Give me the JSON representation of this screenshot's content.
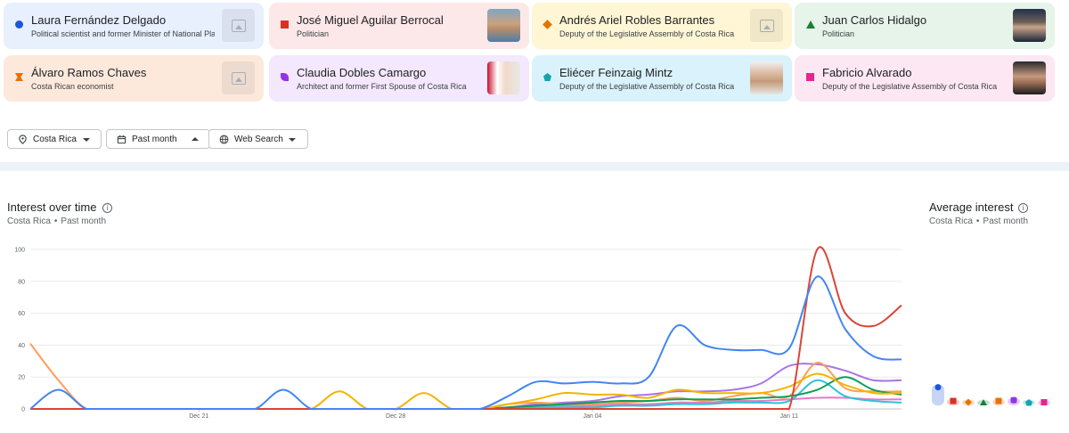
{
  "terms": [
    {
      "name": "Laura Fernández Delgado",
      "desc": "Political scientist and former Minister of National Planning",
      "color": "#1a56db",
      "marker": "circle",
      "bg": "#e8effd",
      "thumb": "placeholder"
    },
    {
      "name": "José Miguel Aguilar Berrocal",
      "desc": "Politician",
      "color": "#d93025",
      "marker": "square",
      "bg": "#fce8e8",
      "thumb": "photo"
    },
    {
      "name": "Andrés Ariel Robles Barrantes",
      "desc": "Deputy of the Legislative Assembly of Costa Rica",
      "color": "#e37400",
      "marker": "diamond",
      "bg": "#fef6d5",
      "thumb": "placeholder"
    },
    {
      "name": "Juan Carlos Hidalgo",
      "desc": "Politician",
      "color": "#188038",
      "marker": "triangle",
      "bg": "#e6f4ea",
      "thumb": "photo"
    },
    {
      "name": "Álvaro Ramos Chaves",
      "desc": "Costa Rican economist",
      "color": "#e8710a",
      "marker": "bowtie",
      "bg": "#fde9dc",
      "thumb": "placeholder"
    },
    {
      "name": "Claudia Dobles Camargo",
      "desc": "Architect and former First Spouse of Costa Rica",
      "color": "#9334e6",
      "marker": "leaf",
      "bg": "#f3e8fd",
      "thumb": "photo"
    },
    {
      "name": "Eliécer Feinzaig Mintz",
      "desc": "Deputy of the Legislative Assembly of Costa Rica",
      "color": "#12a4af",
      "marker": "pentagon",
      "bg": "#d9f2fb",
      "thumb": "photo"
    },
    {
      "name": "Fabricio Alvarado",
      "desc": "Deputy of the Legislative Assembly of Costa Rica",
      "color": "#e52592",
      "marker": "square",
      "bg": "#fde7f3",
      "thumb": "photo"
    }
  ],
  "filters": {
    "region": "Costa Rica",
    "time": "Past month",
    "property": "Web Search"
  },
  "interest": {
    "title": "Interest over time",
    "region": "Costa Rica",
    "period": "Past month",
    "info": "i"
  },
  "average": {
    "title": "Average interest",
    "region": "Costa Rica",
    "period": "Past month",
    "info": "i"
  },
  "icons": {
    "region": "location-pin-icon",
    "time": "calendar-icon",
    "property": "globe-icon",
    "info": "info-icon"
  },
  "chart_data": {
    "type": "line",
    "ylim": [
      0,
      100
    ],
    "yticks": [
      0,
      20,
      40,
      60,
      80,
      100
    ],
    "x": [
      "Dec 15",
      "Dec 16",
      "Dec 17",
      "Dec 18",
      "Dec 19",
      "Dec 20",
      "Dec 21",
      "Dec 22",
      "Dec 23",
      "Dec 24",
      "Dec 25",
      "Dec 26",
      "Dec 27",
      "Dec 28",
      "Dec 29",
      "Dec 30",
      "Dec 31",
      "Jan 01",
      "Jan 02",
      "Jan 03",
      "Jan 04",
      "Jan 05",
      "Jan 06",
      "Jan 07",
      "Jan 08",
      "Jan 09",
      "Jan 10",
      "Jan 11",
      "Jan 12",
      "Jan 13",
      "Jan 14",
      "Jan 15"
    ],
    "xticks": [
      "Dec 21",
      "Dec 28",
      "Jan 04",
      "Jan 11"
    ],
    "grid": true,
    "series": [
      {
        "color": "#4285f4",
        "values": [
          0,
          12,
          0,
          0,
          0,
          0,
          0,
          0,
          0,
          12,
          0,
          0,
          0,
          0,
          0,
          0,
          0,
          8,
          17,
          16,
          17,
          16,
          20,
          52,
          40,
          37,
          37,
          38,
          83,
          50,
          33,
          31
        ]
      },
      {
        "color": "#db4437",
        "values": [
          0,
          0,
          0,
          0,
          0,
          0,
          0,
          0,
          0,
          0,
          0,
          0,
          0,
          0,
          0,
          0,
          0,
          0,
          0,
          0,
          0,
          0,
          0,
          0,
          0,
          0,
          0,
          0,
          100,
          60,
          52,
          65
        ]
      },
      {
        "color": "#f4b400",
        "values": [
          0,
          0,
          0,
          0,
          0,
          0,
          0,
          0,
          0,
          0,
          0,
          11,
          0,
          0,
          10,
          0,
          0,
          3,
          6,
          10,
          9,
          9,
          7,
          12,
          10,
          10,
          10,
          14,
          22,
          15,
          10,
          10
        ]
      },
      {
        "color": "#0f9d58",
        "values": [
          0,
          0,
          0,
          0,
          0,
          0,
          0,
          0,
          0,
          0,
          0,
          0,
          0,
          0,
          0,
          0,
          0,
          1,
          2,
          3,
          4,
          5,
          5,
          6,
          6,
          6,
          7,
          8,
          12,
          20,
          12,
          9
        ]
      },
      {
        "color": "#ff9e58",
        "values": [
          41,
          18,
          0,
          0,
          0,
          0,
          0,
          0,
          0,
          0,
          0,
          0,
          0,
          0,
          0,
          0,
          0,
          3,
          4,
          3,
          3,
          4,
          5,
          7,
          5,
          8,
          10,
          8,
          29,
          13,
          11,
          11
        ]
      },
      {
        "color": "#a875e5",
        "values": [
          0,
          0,
          0,
          0,
          0,
          0,
          0,
          0,
          0,
          0,
          0,
          0,
          0,
          0,
          0,
          0,
          0,
          1,
          3,
          4,
          5,
          8,
          9,
          11,
          11,
          12,
          16,
          27,
          28,
          24,
          18,
          18
        ]
      },
      {
        "color": "#2bc4d9",
        "values": [
          0,
          0,
          0,
          0,
          0,
          0,
          0,
          0,
          0,
          0,
          0,
          0,
          0,
          0,
          0,
          0,
          0,
          0,
          1,
          1,
          1,
          2,
          2,
          3,
          3,
          4,
          4,
          5,
          18,
          8,
          5,
          4
        ]
      },
      {
        "color": "#e57ac3",
        "values": [
          0,
          0,
          0,
          0,
          0,
          0,
          0,
          0,
          0,
          0,
          0,
          0,
          0,
          0,
          0,
          0,
          0,
          1,
          2,
          2,
          2,
          3,
          3,
          4,
          4,
          5,
          5,
          6,
          7,
          7,
          6,
          6
        ]
      }
    ],
    "average": [
      25,
      8,
      7,
      4,
      8,
      9,
      4,
      5
    ]
  }
}
